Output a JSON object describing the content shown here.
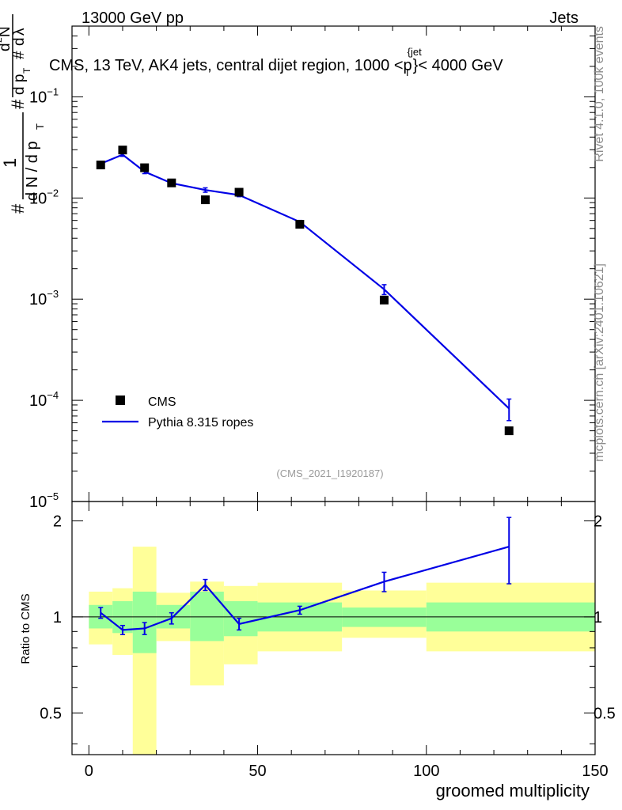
{
  "header": {
    "left": "13000 GeV pp",
    "right": "Jets"
  },
  "side_labels": {
    "upper": "Rivet 4.1.0,  100k events",
    "lower": "mcplots.cern.ch [arXiv:2401.10621]"
  },
  "chart_data": {
    "type": "scatter",
    "title": "CMS, 13 TeV, AK4 jets, central dijet region, 1000 <p_T^{jet}< 4000 GeV",
    "title_parts": {
      "main": "CMS, 13 TeV, AK4 jets, central dijet region, 1000 <p",
      "sup": "{jet",
      "sub": "T",
      "tail": "}< 4000 GeV"
    },
    "analysis_id": "(CMS_2021_I1920187)",
    "xlabel": "groomed multiplicity",
    "ylabel": "1/dN/dp_T # d²N/dp_T # dλ",
    "ylabel_parts": {
      "a": "#",
      "b": "1",
      "c": "d N / d p",
      "d": "#",
      "e": "d",
      "f": "2",
      "g": "N",
      "h": "d p",
      "i": "d",
      "j": "λ",
      "sub": "T",
      "sub2": "T"
    },
    "ratio_ylabel": "Ratio to CMS",
    "xlim": [
      -5,
      150
    ],
    "ylim": [
      1e-05,
      0.5
    ],
    "yscale": "log",
    "x_ticks": [
      0,
      50,
      100,
      150
    ],
    "y_major": [
      {
        "v": 0.1,
        "base": "10",
        "exp": "−1"
      },
      {
        "v": 0.01,
        "base": "10",
        "exp": "−2"
      },
      {
        "v": 0.001,
        "base": "10",
        "exp": "−3"
      },
      {
        "v": 0.0001,
        "base": "10",
        "exp": "−4"
      },
      {
        "v": 1e-05,
        "base": "10",
        "exp": "−5"
      }
    ],
    "ratio_ylim": [
      0.37,
      2.3
    ],
    "ratio_ticks": [
      {
        "v": 0.5,
        "label": "0.5"
      },
      {
        "v": 1,
        "label": "1"
      },
      {
        "v": 2,
        "label": "2"
      }
    ],
    "legend": [
      {
        "name": "CMS",
        "kind": "marker"
      },
      {
        "name": "Pythia 8.315 ropes",
        "kind": "line"
      }
    ],
    "legend_position": "lower-left",
    "bins": [
      {
        "lo": 0,
        "hi": 7,
        "x": 3.5
      },
      {
        "lo": 7,
        "hi": 13,
        "x": 10
      },
      {
        "lo": 13,
        "hi": 20,
        "x": 16.5
      },
      {
        "lo": 20,
        "hi": 30,
        "x": 24.5
      },
      {
        "lo": 30,
        "hi": 40,
        "x": 34.5
      },
      {
        "lo": 40,
        "hi": 50,
        "x": 44.5
      },
      {
        "lo": 50,
        "hi": 75,
        "x": 62.5
      },
      {
        "lo": 75,
        "hi": 100,
        "x": 87.5
      },
      {
        "lo": 100,
        "hi": 150,
        "x": 124.5
      }
    ],
    "series": [
      {
        "name": "CMS",
        "values": [
          0.0212,
          0.0298,
          0.0199,
          0.0141,
          0.0096,
          0.0114,
          0.0055,
          0.00098,
          5e-05
        ]
      },
      {
        "name": "Pythia 8.315 ropes",
        "values": [
          0.0218,
          0.0268,
          0.0182,
          0.014,
          0.012,
          0.0107,
          0.0058,
          0.00125,
          8.3e-05
        ],
        "err": [
          0.0007,
          0.001,
          0.0008,
          0.0004,
          0.0006,
          0.0004,
          0.0002,
          0.00014,
          2e-05
        ]
      }
    ],
    "ratio": {
      "values": [
        1.03,
        0.91,
        0.92,
        0.99,
        1.26,
        0.95,
        1.05,
        1.29,
        1.66
      ],
      "err": [
        0.04,
        0.03,
        0.04,
        0.04,
        0.05,
        0.04,
        0.03,
        0.09,
        0.39
      ],
      "band_inner": [
        [
          0.92,
          1.09
        ],
        [
          0.89,
          1.12
        ],
        [
          0.77,
          1.2
        ],
        [
          0.92,
          1.09
        ],
        [
          0.84,
          1.2
        ],
        [
          0.87,
          1.12
        ],
        [
          0.9,
          1.11
        ],
        [
          0.93,
          1.07
        ],
        [
          0.9,
          1.11
        ]
      ],
      "band_outer": [
        [
          0.82,
          1.2
        ],
        [
          0.76,
          1.23
        ],
        [
          0.36,
          1.66
        ],
        [
          0.84,
          1.19
        ],
        [
          0.61,
          1.29
        ],
        [
          0.71,
          1.25
        ],
        [
          0.78,
          1.28
        ],
        [
          0.86,
          1.21
        ],
        [
          0.78,
          1.28
        ]
      ]
    }
  }
}
